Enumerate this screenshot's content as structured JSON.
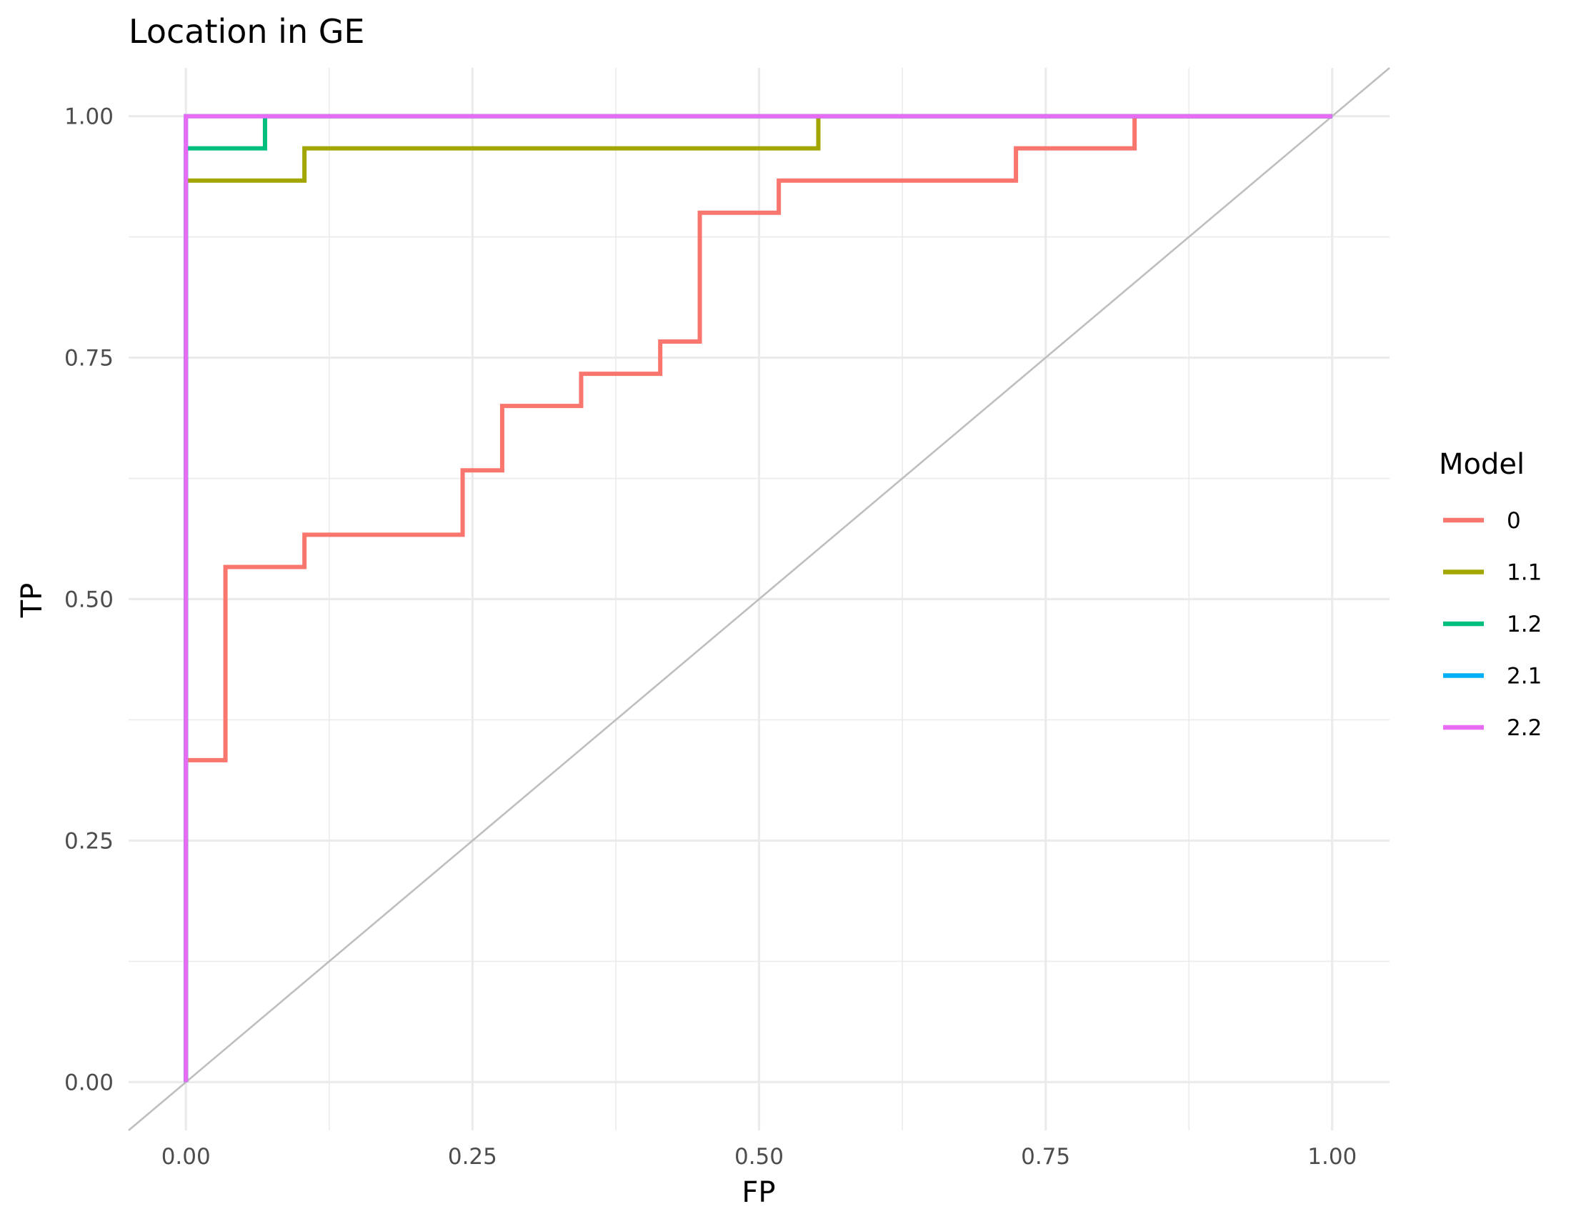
{
  "chart_data": {
    "type": "line",
    "title": "Location in GE",
    "xlabel": "FP",
    "ylabel": "TP",
    "xlim": [
      -0.05,
      1.05
    ],
    "ylim": [
      -0.05,
      1.05
    ],
    "x_ticks": [
      "0.00",
      "0.25",
      "0.50",
      "0.75",
      "1.00"
    ],
    "y_ticks": [
      "0.00",
      "0.25",
      "0.50",
      "0.75",
      "1.00"
    ],
    "grid": true,
    "legend": {
      "title": "Model",
      "position": "right"
    },
    "reference_line": {
      "type": "diagonal",
      "slope": 1,
      "intercept": 0,
      "color": "#bebebe"
    },
    "series": [
      {
        "name": "0",
        "color": "#F8766D",
        "x": [
          0,
          0,
          0.0345,
          0.0345,
          0.1034,
          0.1034,
          0.2414,
          0.2414,
          0.2759,
          0.2759,
          0.3448,
          0.3448,
          0.4138,
          0.4138,
          0.4483,
          0.4483,
          0.5172,
          0.5172,
          0.7241,
          0.7241,
          0.8276,
          0.8276,
          1.0
        ],
        "y": [
          0,
          0.3333,
          0.3333,
          0.5333,
          0.5333,
          0.5667,
          0.5667,
          0.6333,
          0.6333,
          0.7,
          0.7,
          0.7333,
          0.7333,
          0.7667,
          0.7667,
          0.9,
          0.9,
          0.9333,
          0.9333,
          0.9667,
          0.9667,
          1.0,
          1.0
        ]
      },
      {
        "name": "1.1",
        "color": "#A3A500",
        "x": [
          0,
          0,
          0.1034,
          0.1034,
          0.5517,
          0.5517,
          1.0
        ],
        "y": [
          0,
          0.9333,
          0.9333,
          0.9667,
          0.9667,
          1.0,
          1.0
        ]
      },
      {
        "name": "1.2",
        "color": "#00BF7D",
        "x": [
          0,
          0,
          0.069,
          0.069,
          1.0
        ],
        "y": [
          0,
          0.9667,
          0.9667,
          1.0,
          1.0
        ]
      },
      {
        "name": "2.1",
        "color": "#00B0F6",
        "x": [
          0,
          0,
          1.0
        ],
        "y": [
          0,
          1.0,
          1.0
        ]
      },
      {
        "name": "2.2",
        "color": "#E76BF3",
        "x": [
          0,
          0,
          1.0
        ],
        "y": [
          0,
          1.0,
          1.0
        ]
      }
    ]
  }
}
